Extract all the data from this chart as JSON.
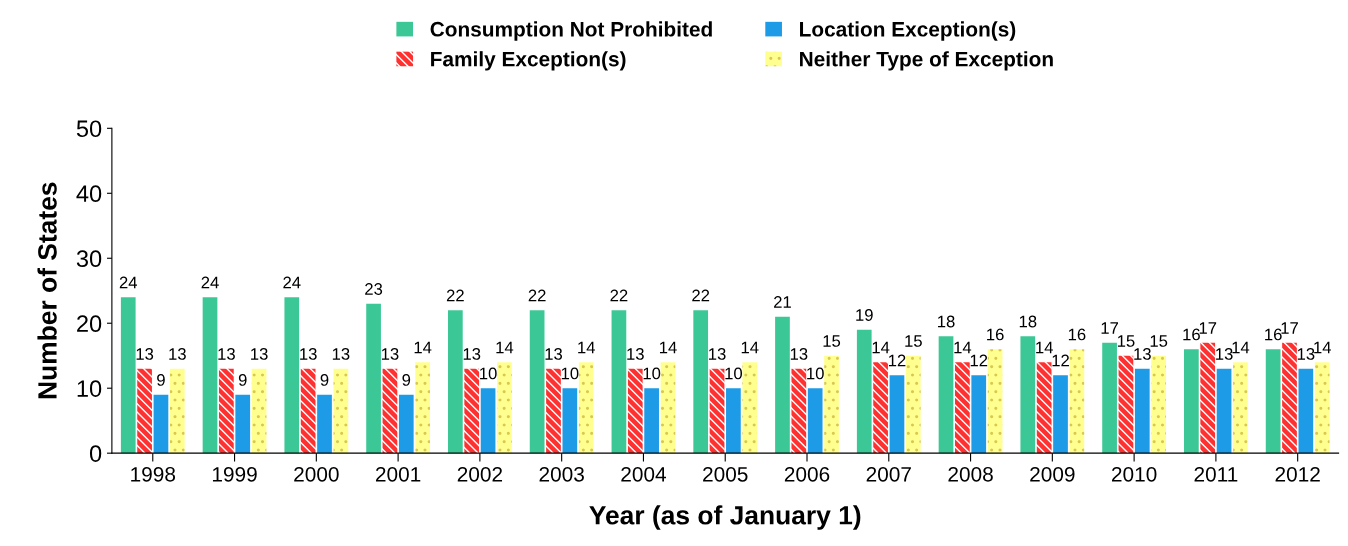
{
  "chart_data": {
    "type": "bar",
    "xlabel": "Year (as of January 1)",
    "ylabel": "Number of States",
    "categories": [
      "1998",
      "1999",
      "2000",
      "2001",
      "2002",
      "2003",
      "2004",
      "2005",
      "2006",
      "2007",
      "2008",
      "2009",
      "2010",
      "2011",
      "2012"
    ],
    "series": [
      {
        "name": "Consumption Not Prohibited",
        "color": "#3cc896",
        "values": [
          24,
          24,
          24,
          23,
          22,
          22,
          22,
          22,
          21,
          19,
          18,
          18,
          17,
          16,
          16
        ]
      },
      {
        "name": "Family Exception(s)",
        "color": "#ff3030",
        "values": [
          13,
          13,
          13,
          13,
          13,
          13,
          13,
          13,
          13,
          14,
          14,
          14,
          15,
          17,
          17
        ]
      },
      {
        "name": "Location Exception(s)",
        "color": "#1e9be6",
        "values": [
          9,
          9,
          9,
          9,
          10,
          10,
          10,
          10,
          10,
          12,
          12,
          12,
          13,
          13,
          13
        ]
      },
      {
        "name": "Neither Type of Exception",
        "color": "#ffff90",
        "values": [
          13,
          13,
          13,
          14,
          14,
          14,
          14,
          14,
          15,
          15,
          16,
          16,
          15,
          14,
          14
        ]
      }
    ],
    "ylim": [
      0,
      50
    ],
    "yticks": [
      0,
      10,
      20,
      30,
      40,
      50
    ],
    "grid": false,
    "legend": "top",
    "data_labels": true
  }
}
